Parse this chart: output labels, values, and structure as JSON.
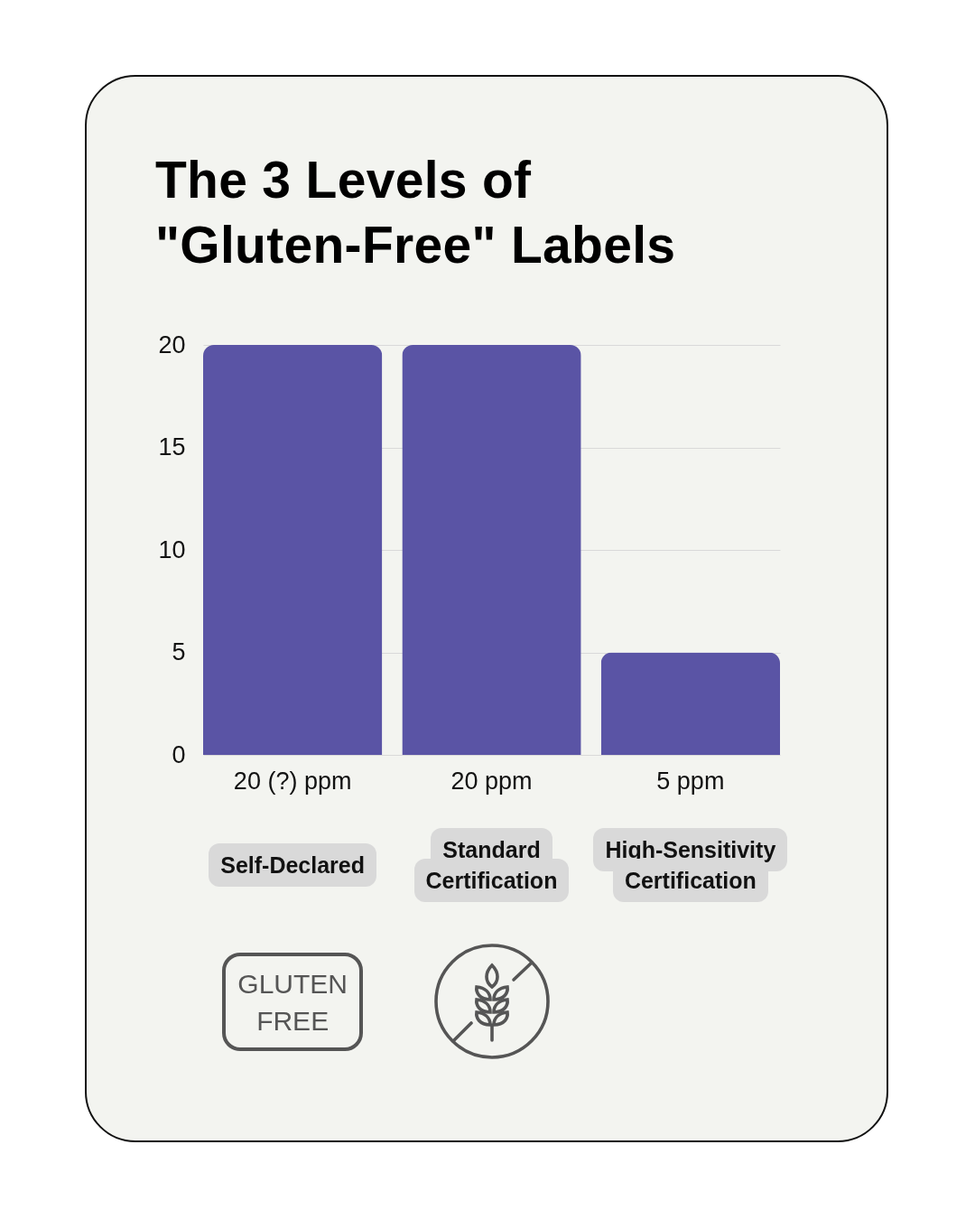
{
  "chart_data": {
    "type": "bar",
    "title": "The 3 Levels of \"Gluten-Free\" Labels",
    "categories": [
      "Self-Declared",
      "Standard Certification",
      "High-Sensitivity Certification"
    ],
    "values": [
      20,
      20,
      5
    ],
    "value_labels": [
      "20 (?) ppm",
      "20 ppm",
      "5 ppm"
    ],
    "color": "#5a54a5",
    "ylim": [
      0,
      20
    ],
    "yticks": [
      0,
      5,
      10,
      15,
      20
    ],
    "grid": "y",
    "annotations": [
      "GLUTEN FREE"
    ]
  }
}
